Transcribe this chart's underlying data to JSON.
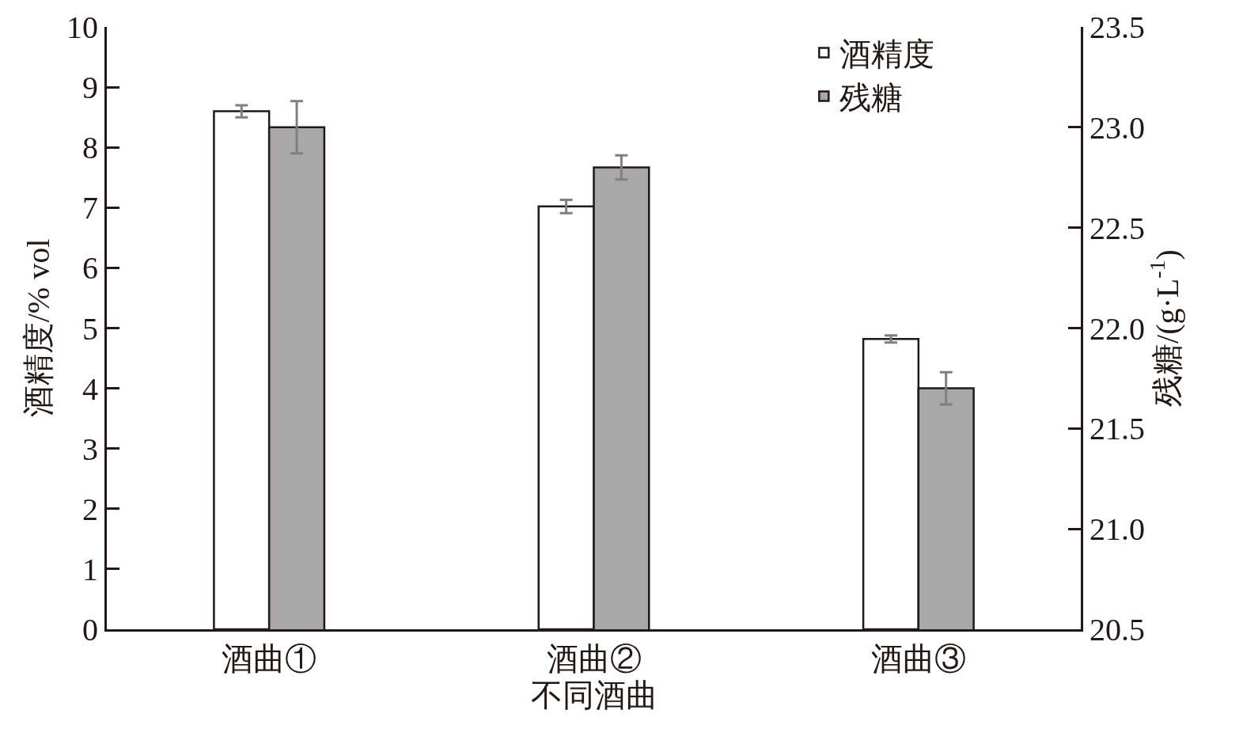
{
  "chart_data": {
    "type": "bar",
    "xlabel": "不同酒曲",
    "ylabel": "酒精度/% vol",
    "y2label": "残糖/(g·L$^{-1}$)",
    "categories": [
      "酒曲①",
      "酒曲②",
      "酒曲③"
    ],
    "series": [
      {
        "name": "酒精度",
        "color": "#ffffff",
        "values": [
          8.6,
          7.02,
          4.82
        ],
        "errors": [
          0.1,
          0.11,
          0.06
        ]
      },
      {
        "name": "残糖",
        "color": "#a8a8a8",
        "axis": "y2",
        "values": [
          23.0,
          22.8,
          21.7
        ],
        "errors": [
          0.13,
          0.06,
          0.08
        ]
      }
    ],
    "ylim": [
      0,
      10
    ],
    "yticks": [
      0,
      1,
      2,
      3,
      4,
      5,
      6,
      7,
      8,
      9,
      10
    ],
    "y2lim": [
      20.5,
      23.5
    ],
    "y2ticks": [
      {
        "value": 20.5,
        "label": "20.5"
      },
      {
        "value": 21,
        "label": "21.0"
      },
      {
        "value": 21.5,
        "label": "21.5"
      },
      {
        "value": 22,
        "label": "22.0"
      },
      {
        "value": 22.5,
        "label": "22.5"
      },
      {
        "value": 23,
        "label": "23.0"
      },
      {
        "value": 23.5,
        "label": "23.5"
      }
    ],
    "legend": "top right"
  }
}
